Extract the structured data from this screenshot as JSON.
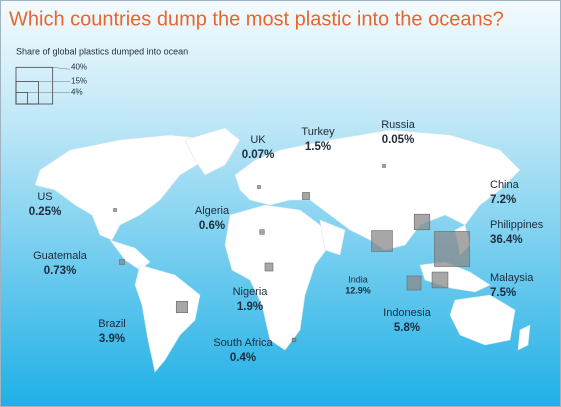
{
  "title": "Which countries dump the most plastic into the oceans?",
  "legend": {
    "title": "Share of global plastics dumped into ocean",
    "items": [
      {
        "value": 40,
        "label": "40%"
      },
      {
        "value": 15,
        "label": "15%"
      },
      {
        "value": 4,
        "label": "4%"
      }
    ]
  },
  "countries": [
    {
      "name": "UK",
      "value": 0.07,
      "value_label": "0.07%"
    },
    {
      "name": "Turkey",
      "value": 1.5,
      "value_label": "1.5%"
    },
    {
      "name": "Russia",
      "value": 0.05,
      "value_label": "0.05%"
    },
    {
      "name": "China",
      "value": 7.2,
      "value_label": "7.2%"
    },
    {
      "name": "Philippines",
      "value": 36.4,
      "value_label": "36.4%"
    },
    {
      "name": "Malaysia",
      "value": 7.5,
      "value_label": "7.5%"
    },
    {
      "name": "Indonesia",
      "value": 5.8,
      "value_label": "5.8%"
    },
    {
      "name": "India",
      "value": 12.9,
      "value_label": "12.9%"
    },
    {
      "name": "US",
      "value": 0.25,
      "value_label": "0.25%"
    },
    {
      "name": "Algeria",
      "value": 0.6,
      "value_label": "0.6%"
    },
    {
      "name": "Guatemala",
      "value": 0.73,
      "value_label": "0.73%"
    },
    {
      "name": "Nigeria",
      "value": 1.9,
      "value_label": "1.9%"
    },
    {
      "name": "Brazil",
      "value": 3.9,
      "value_label": "3.9%"
    },
    {
      "name": "South Africa",
      "value": 0.4,
      "value_label": "0.4%"
    }
  ]
}
